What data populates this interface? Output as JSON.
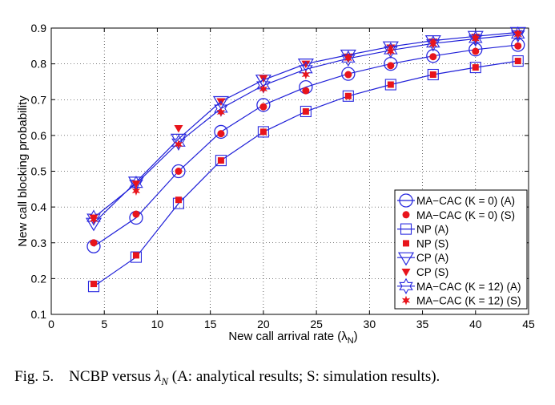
{
  "chart_data": {
    "type": "line",
    "xlabel": "New call arrival rate (λN)",
    "ylabel": "New call blocking probability",
    "xlim": [
      0,
      45
    ],
    "ylim": [
      0.1,
      0.9
    ],
    "x_ticks": [
      "0",
      "5",
      "10",
      "15",
      "20",
      "25",
      "30",
      "35",
      "40",
      "45"
    ],
    "y_ticks": [
      "0.1",
      "0.2",
      "0.3",
      "0.4",
      "0.5",
      "0.6",
      "0.7",
      "0.8",
      "0.9"
    ],
    "grid": true,
    "legend_position": "bottom-right",
    "colors": {
      "line": "#1f1fd8",
      "marker_outline": "#2a2ae0",
      "marker_fill": "#e8141b"
    },
    "series": [
      {
        "name": "MA−CAC (K = 0) (A)",
        "marker": "circle-open",
        "line": true,
        "x": [
          4,
          8,
          12,
          16,
          20,
          24,
          28,
          32,
          36,
          40,
          44
        ],
        "y": [
          0.29,
          0.37,
          0.5,
          0.61,
          0.685,
          0.735,
          0.772,
          0.8,
          0.822,
          0.84,
          0.853
        ]
      },
      {
        "name": "MA−CAC (K = 0) (S)",
        "marker": "circle-filled",
        "line": false,
        "x": [
          4,
          8,
          12,
          16,
          20,
          24,
          28,
          32,
          36,
          40,
          44
        ],
        "y": [
          0.3,
          0.38,
          0.5,
          0.605,
          0.68,
          0.725,
          0.77,
          0.795,
          0.82,
          0.835,
          0.85
        ]
      },
      {
        "name": "NP (A)",
        "marker": "square-open",
        "line": true,
        "x": [
          4,
          8,
          12,
          16,
          20,
          24,
          28,
          32,
          36,
          40,
          44
        ],
        "y": [
          0.178,
          0.26,
          0.41,
          0.53,
          0.61,
          0.667,
          0.71,
          0.742,
          0.77,
          0.79,
          0.808
        ]
      },
      {
        "name": "NP (S)",
        "marker": "square-filled",
        "line": false,
        "x": [
          4,
          8,
          12,
          16,
          20,
          24,
          28,
          32,
          36,
          40,
          44
        ],
        "y": [
          0.185,
          0.265,
          0.42,
          0.53,
          0.61,
          0.667,
          0.71,
          0.742,
          0.77,
          0.79,
          0.808
        ]
      },
      {
        "name": "CP (A)",
        "marker": "triangle-down-open",
        "line": true,
        "x": [
          4,
          8,
          12,
          16,
          20,
          24,
          28,
          32,
          36,
          40,
          44
        ],
        "y": [
          0.355,
          0.47,
          0.59,
          0.695,
          0.755,
          0.8,
          0.825,
          0.848,
          0.865,
          0.877,
          0.888
        ]
      },
      {
        "name": "CP (S)",
        "marker": "triangle-down-filled",
        "line": false,
        "x": [
          4,
          8,
          12,
          16,
          20,
          24,
          28,
          32,
          36,
          40,
          44
        ],
        "y": [
          0.37,
          0.465,
          0.62,
          0.695,
          0.76,
          0.8,
          0.82,
          0.845,
          0.862,
          0.875,
          0.885
        ]
      },
      {
        "name": "MA−CAC (K = 12) (A)",
        "marker": "hexagram-open",
        "line": true,
        "x": [
          4,
          8,
          12,
          16,
          20,
          24,
          28,
          32,
          36,
          40,
          44
        ],
        "y": [
          0.37,
          0.465,
          0.58,
          0.675,
          0.74,
          0.785,
          0.815,
          0.838,
          0.857,
          0.87,
          0.882
        ]
      },
      {
        "name": "MA−CAC (K = 12) (S)",
        "marker": "star-filled",
        "line": false,
        "x": [
          4,
          8,
          12,
          16,
          20,
          24,
          28,
          32,
          36,
          40,
          44
        ],
        "y": [
          0.365,
          0.445,
          0.575,
          0.665,
          0.73,
          0.77,
          0.815,
          0.835,
          0.855,
          0.87,
          0.882
        ]
      }
    ]
  },
  "caption": {
    "fig_label": "Fig. 5.",
    "text_before": "NCBP versus ",
    "lambda": "λ",
    "subscript": "N",
    "text_after": " (A: analytical results; S: simulation results)."
  }
}
